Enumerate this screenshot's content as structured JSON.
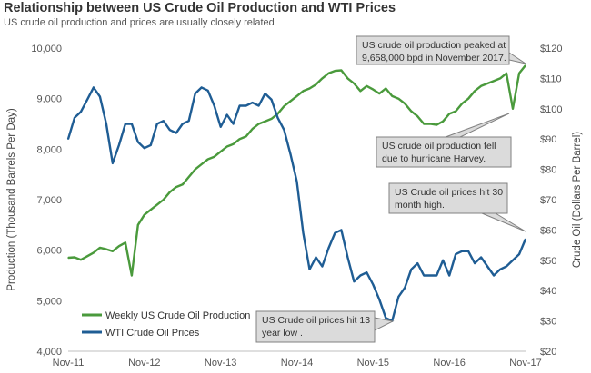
{
  "title": "Relationship between US Crude Oil Production and WTI Prices",
  "subtitle": "US crude oil production and prices are usually closely related",
  "chart_data": {
    "type": "line",
    "x_ticks": [
      "Nov-11",
      "Nov-12",
      "Nov-13",
      "Nov-14",
      "Nov-15",
      "Nov-16",
      "Nov-17"
    ],
    "y_left": {
      "label": "Production (Thousand  Barrels Per Day)",
      "ticks": [
        "4,000",
        "5,000",
        "6,000",
        "7,000",
        "8,000",
        "9,000",
        "10,000"
      ],
      "range": [
        4000,
        10000
      ]
    },
    "y_right": {
      "label": "Crude Oil (Dollars Per Barrel)",
      "ticks": [
        "$20",
        "$30",
        "$40",
        "$50",
        "$60",
        "$70",
        "$80",
        "$90",
        "$100",
        "$110",
        "$120"
      ],
      "range": [
        20,
        120
      ]
    },
    "grid": false,
    "legend_position": "bottom-left",
    "series": [
      {
        "name": "Weekly US Crude Oil Production",
        "axis": "left",
        "color": "#4a9a3c",
        "points": [
          [
            "2011-11",
            5850
          ],
          [
            "2011-12",
            5860
          ],
          [
            "2012-01",
            5810
          ],
          [
            "2012-02",
            5880
          ],
          [
            "2012-03",
            5950
          ],
          [
            "2012-04",
            6050
          ],
          [
            "2012-05",
            6020
          ],
          [
            "2012-06",
            5980
          ],
          [
            "2012-07",
            6080
          ],
          [
            "2012-08",
            6150
          ],
          [
            "2012-09",
            5500
          ],
          [
            "2012-10",
            6500
          ],
          [
            "2012-11",
            6700
          ],
          [
            "2012-12",
            6800
          ],
          [
            "2013-01",
            6900
          ],
          [
            "2013-02",
            7000
          ],
          [
            "2013-03",
            7150
          ],
          [
            "2013-04",
            7250
          ],
          [
            "2013-05",
            7300
          ],
          [
            "2013-06",
            7450
          ],
          [
            "2013-07",
            7600
          ],
          [
            "2013-08",
            7700
          ],
          [
            "2013-09",
            7800
          ],
          [
            "2013-10",
            7850
          ],
          [
            "2013-11",
            7950
          ],
          [
            "2013-12",
            8050
          ],
          [
            "2014-01",
            8100
          ],
          [
            "2014-02",
            8200
          ],
          [
            "2014-03",
            8250
          ],
          [
            "2014-04",
            8400
          ],
          [
            "2014-05",
            8500
          ],
          [
            "2014-06",
            8550
          ],
          [
            "2014-07",
            8600
          ],
          [
            "2014-08",
            8700
          ],
          [
            "2014-09",
            8850
          ],
          [
            "2014-10",
            8950
          ],
          [
            "2014-11",
            9050
          ],
          [
            "2014-12",
            9150
          ],
          [
            "2015-01",
            9200
          ],
          [
            "2015-02",
            9280
          ],
          [
            "2015-03",
            9400
          ],
          [
            "2015-04",
            9500
          ],
          [
            "2015-05",
            9550
          ],
          [
            "2015-06",
            9560
          ],
          [
            "2015-07",
            9400
          ],
          [
            "2015-08",
            9300
          ],
          [
            "2015-09",
            9150
          ],
          [
            "2015-10",
            9250
          ],
          [
            "2015-11",
            9180
          ],
          [
            "2015-12",
            9100
          ],
          [
            "2016-01",
            9200
          ],
          [
            "2016-02",
            9050
          ],
          [
            "2016-03",
            9000
          ],
          [
            "2016-04",
            8900
          ],
          [
            "2016-05",
            8750
          ],
          [
            "2016-06",
            8650
          ],
          [
            "2016-07",
            8500
          ],
          [
            "2016-08",
            8500
          ],
          [
            "2016-09",
            8480
          ],
          [
            "2016-10",
            8550
          ],
          [
            "2016-11",
            8700
          ],
          [
            "2016-12",
            8750
          ],
          [
            "2017-01",
            8900
          ],
          [
            "2017-02",
            9000
          ],
          [
            "2017-03",
            9150
          ],
          [
            "2017-04",
            9250
          ],
          [
            "2017-05",
            9300
          ],
          [
            "2017-06",
            9350
          ],
          [
            "2017-07",
            9400
          ],
          [
            "2017-08",
            9500
          ],
          [
            "2017-09",
            8800
          ],
          [
            "2017-10",
            9500
          ],
          [
            "2017-11",
            9658
          ]
        ]
      },
      {
        "name": "WTI Crude Oil Prices",
        "axis": "right",
        "color": "#1f5d94",
        "points": [
          [
            "2011-11",
            90
          ],
          [
            "2011-12",
            97
          ],
          [
            "2012-01",
            99
          ],
          [
            "2012-02",
            103
          ],
          [
            "2012-03",
            107
          ],
          [
            "2012-04",
            104
          ],
          [
            "2012-05",
            95
          ],
          [
            "2012-06",
            82
          ],
          [
            "2012-07",
            88
          ],
          [
            "2012-08",
            95
          ],
          [
            "2012-09",
            95
          ],
          [
            "2012-10",
            89
          ],
          [
            "2012-11",
            87
          ],
          [
            "2012-12",
            88
          ],
          [
            "2013-01",
            95
          ],
          [
            "2013-02",
            96
          ],
          [
            "2013-03",
            93
          ],
          [
            "2013-04",
            92
          ],
          [
            "2013-05",
            95
          ],
          [
            "2013-06",
            96
          ],
          [
            "2013-07",
            105
          ],
          [
            "2013-08",
            107
          ],
          [
            "2013-09",
            106
          ],
          [
            "2013-10",
            101
          ],
          [
            "2013-11",
            94
          ],
          [
            "2013-12",
            98
          ],
          [
            "2014-01",
            95
          ],
          [
            "2014-02",
            101
          ],
          [
            "2014-03",
            101
          ],
          [
            "2014-04",
            102
          ],
          [
            "2014-05",
            101
          ],
          [
            "2014-06",
            105
          ],
          [
            "2014-07",
            103
          ],
          [
            "2014-08",
            97
          ],
          [
            "2014-09",
            93
          ],
          [
            "2014-10",
            85
          ],
          [
            "2014-11",
            76
          ],
          [
            "2014-12",
            59
          ],
          [
            "2015-01",
            47
          ],
          [
            "2015-02",
            51
          ],
          [
            "2015-03",
            48
          ],
          [
            "2015-04",
            54
          ],
          [
            "2015-05",
            59
          ],
          [
            "2015-06",
            60
          ],
          [
            "2015-07",
            51
          ],
          [
            "2015-08",
            43
          ],
          [
            "2015-09",
            45
          ],
          [
            "2015-10",
            46
          ],
          [
            "2015-11",
            42
          ],
          [
            "2015-12",
            37
          ],
          [
            "2016-01",
            31
          ],
          [
            "2016-02",
            30
          ],
          [
            "2016-03",
            38
          ],
          [
            "2016-04",
            41
          ],
          [
            "2016-05",
            47
          ],
          [
            "2016-06",
            49
          ],
          [
            "2016-07",
            45
          ],
          [
            "2016-08",
            45
          ],
          [
            "2016-09",
            45
          ],
          [
            "2016-10",
            50
          ],
          [
            "2016-11",
            45
          ],
          [
            "2016-12",
            52
          ],
          [
            "2017-01",
            53
          ],
          [
            "2017-02",
            53
          ],
          [
            "2017-03",
            49
          ],
          [
            "2017-04",
            51
          ],
          [
            "2017-05",
            48
          ],
          [
            "2017-06",
            45
          ],
          [
            "2017-07",
            47
          ],
          [
            "2017-08",
            48
          ],
          [
            "2017-09",
            50
          ],
          [
            "2017-10",
            52
          ],
          [
            "2017-11",
            57
          ]
        ]
      }
    ],
    "annotations": [
      {
        "text": [
          "US crude oil production peaked at",
          "9,658,000 bpd in November 2017."
        ]
      },
      {
        "text": [
          "US crude oil production fell",
          "due to hurricane Harvey."
        ]
      },
      {
        "text": [
          "US Crude oil prices hit 30",
          "month high."
        ]
      },
      {
        "text": [
          "US Crude oil prices hit 13",
          "year low ."
        ]
      }
    ]
  },
  "colors": {
    "annotation_fill": "#dbdbdb",
    "annotation_border": "#808080",
    "axis_text": "#555555"
  }
}
